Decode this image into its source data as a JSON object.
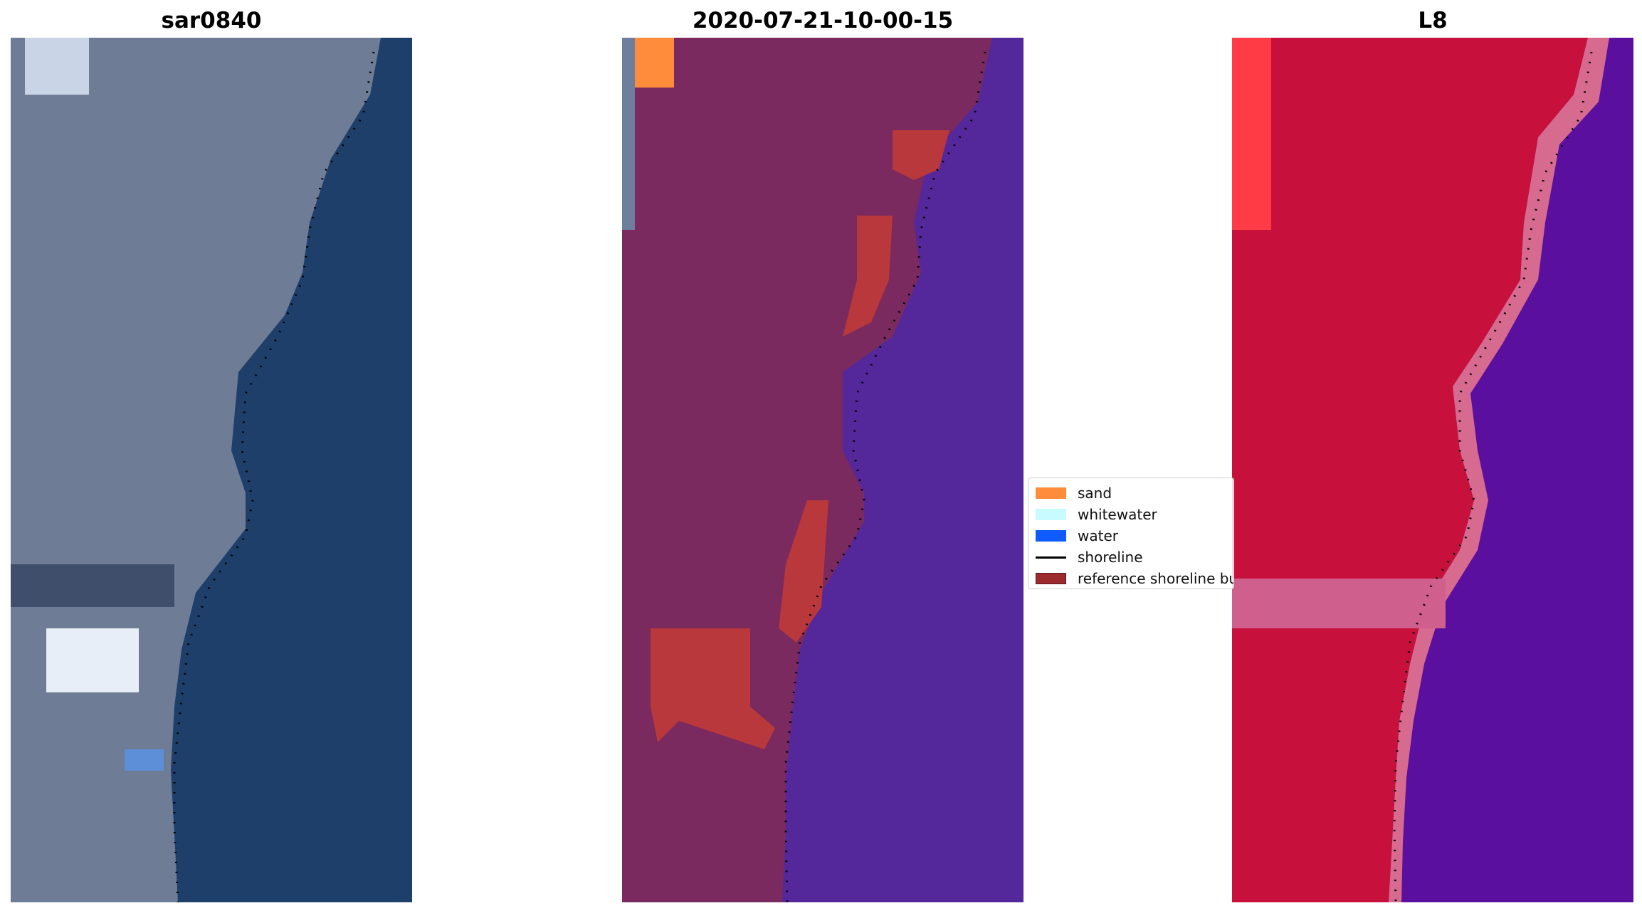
{
  "panels": [
    {
      "title": "sar0840"
    },
    {
      "title": "2020-07-21-10-00-15"
    },
    {
      "title": "L8"
    }
  ],
  "legend": {
    "items": [
      {
        "label": "sand",
        "color": "#ff8c3a",
        "kind": "patch"
      },
      {
        "label": "whitewater",
        "color": "#c8fbff",
        "kind": "patch"
      },
      {
        "label": "water",
        "color": "#0f5bff",
        "kind": "patch"
      },
      {
        "label": "shoreline",
        "color": "#000000",
        "kind": "line"
      },
      {
        "label": "reference shoreline buffer",
        "color": "#9c2b30",
        "kind": "patch"
      }
    ]
  },
  "colors": {
    "rgb_land": "#6e7c95",
    "rgb_water": "#1f3f6b",
    "classified_land": "#7a2a5e",
    "classified_water": "#54279a",
    "falsecolor_land": "#c8103c",
    "falsecolor_water": "#5b0f9e"
  }
}
